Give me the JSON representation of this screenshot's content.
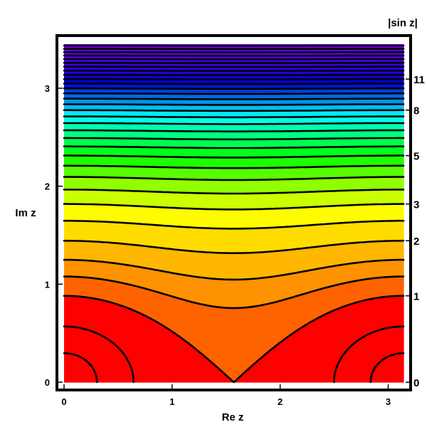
{
  "chart_data": {
    "type": "heatmap",
    "subtype": "contour",
    "function": "|sin z|",
    "xlabel": "Re z",
    "ylabel": "Im z",
    "colorbar_label": "|sin z|",
    "xlim": [
      0,
      3.14159
    ],
    "ylim": [
      0,
      3.45
    ],
    "x_ticks": [
      0,
      1,
      2,
      3
    ],
    "y_ticks": [
      0,
      1,
      2,
      3
    ],
    "contour_levels": [
      0.3,
      0.6,
      1,
      1.3,
      1.6,
      2,
      2.5,
      3,
      3.5,
      4,
      4.5,
      5,
      5.5,
      6,
      6.5,
      7,
      7.5,
      8,
      8.5,
      9,
      9.5,
      10,
      10.5,
      11,
      11.5,
      12,
      12.5,
      13,
      13.5,
      14,
      14.5,
      15,
      15.5
    ],
    "colorbar_ticks": [
      {
        "value": 0,
        "label": "0"
      },
      {
        "value": 1,
        "label": "1"
      },
      {
        "value": 2,
        "label": "2"
      },
      {
        "value": 3,
        "label": "3"
      },
      {
        "value": 5,
        "label": "5"
      },
      {
        "value": 8,
        "label": "8"
      },
      {
        "value": 11,
        "label": "11"
      }
    ],
    "colormap": [
      "#ff0000",
      "#ff7700",
      "#ffcc00",
      "#ffff00",
      "#00ff00",
      "#00ffff",
      "#0000cc",
      "#8000ff"
    ],
    "grid": false
  }
}
